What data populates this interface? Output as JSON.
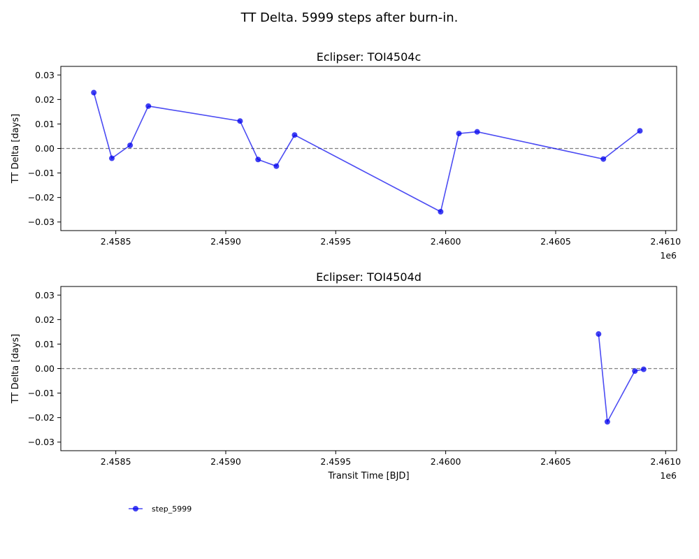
{
  "figure_title": "TT Delta. 5999 steps after burn-in.",
  "legend": {
    "label": "step_5999",
    "placement": "lower-left",
    "color": "#0000ee"
  },
  "chart_data": [
    {
      "type": "line",
      "title": "Eclipser: TOI4504c",
      "xlabel": "",
      "ylabel": "TT Delta [days]",
      "x_offset_label": "1e6",
      "x_tick_labels": [
        "2.4585",
        "2.4590",
        "2.4595",
        "2.4600",
        "2.4605",
        "2.4610"
      ],
      "y_tick_labels": [
        "0.03",
        "0.02",
        "0.01",
        "0.00",
        "−0.01",
        "−0.02",
        "−0.03"
      ],
      "xlim": [
        2458250,
        2461050
      ],
      "ylim": [
        -0.0335,
        0.0335
      ],
      "reference_line": 0.0,
      "series": [
        {
          "name": "step_5999",
          "color": "#0000ee",
          "x": [
            2458400,
            2458482,
            2458565,
            2458648,
            2459065,
            2459147,
            2459230,
            2459313,
            2459977,
            2460060,
            2460143,
            2460717,
            2460883
          ],
          "y": [
            0.0228,
            -0.004,
            0.0013,
            0.0173,
            0.0112,
            -0.0045,
            -0.0072,
            0.0055,
            -0.0258,
            0.0061,
            0.0068,
            -0.0043,
            0.0072
          ]
        }
      ]
    },
    {
      "type": "line",
      "title": "Eclipser: TOI4504d",
      "xlabel": "Transit Time [BJD]",
      "ylabel": "TT Delta [days]",
      "x_offset_label": "1e6",
      "x_tick_labels": [
        "2.4585",
        "2.4590",
        "2.4595",
        "2.4600",
        "2.4605",
        "2.4610"
      ],
      "y_tick_labels": [
        "0.03",
        "0.02",
        "0.01",
        "0.00",
        "−0.01",
        "−0.02",
        "−0.03"
      ],
      "xlim": [
        2458250,
        2461050
      ],
      "ylim": [
        -0.0335,
        0.0335
      ],
      "reference_line": 0.0,
      "series": [
        {
          "name": "step_5999",
          "color": "#0000ee",
          "x": [
            2460695,
            2460735,
            2460860,
            2460900
          ],
          "y": [
            0.0141,
            -0.0217,
            -0.001,
            -0.0003
          ]
        }
      ]
    }
  ]
}
